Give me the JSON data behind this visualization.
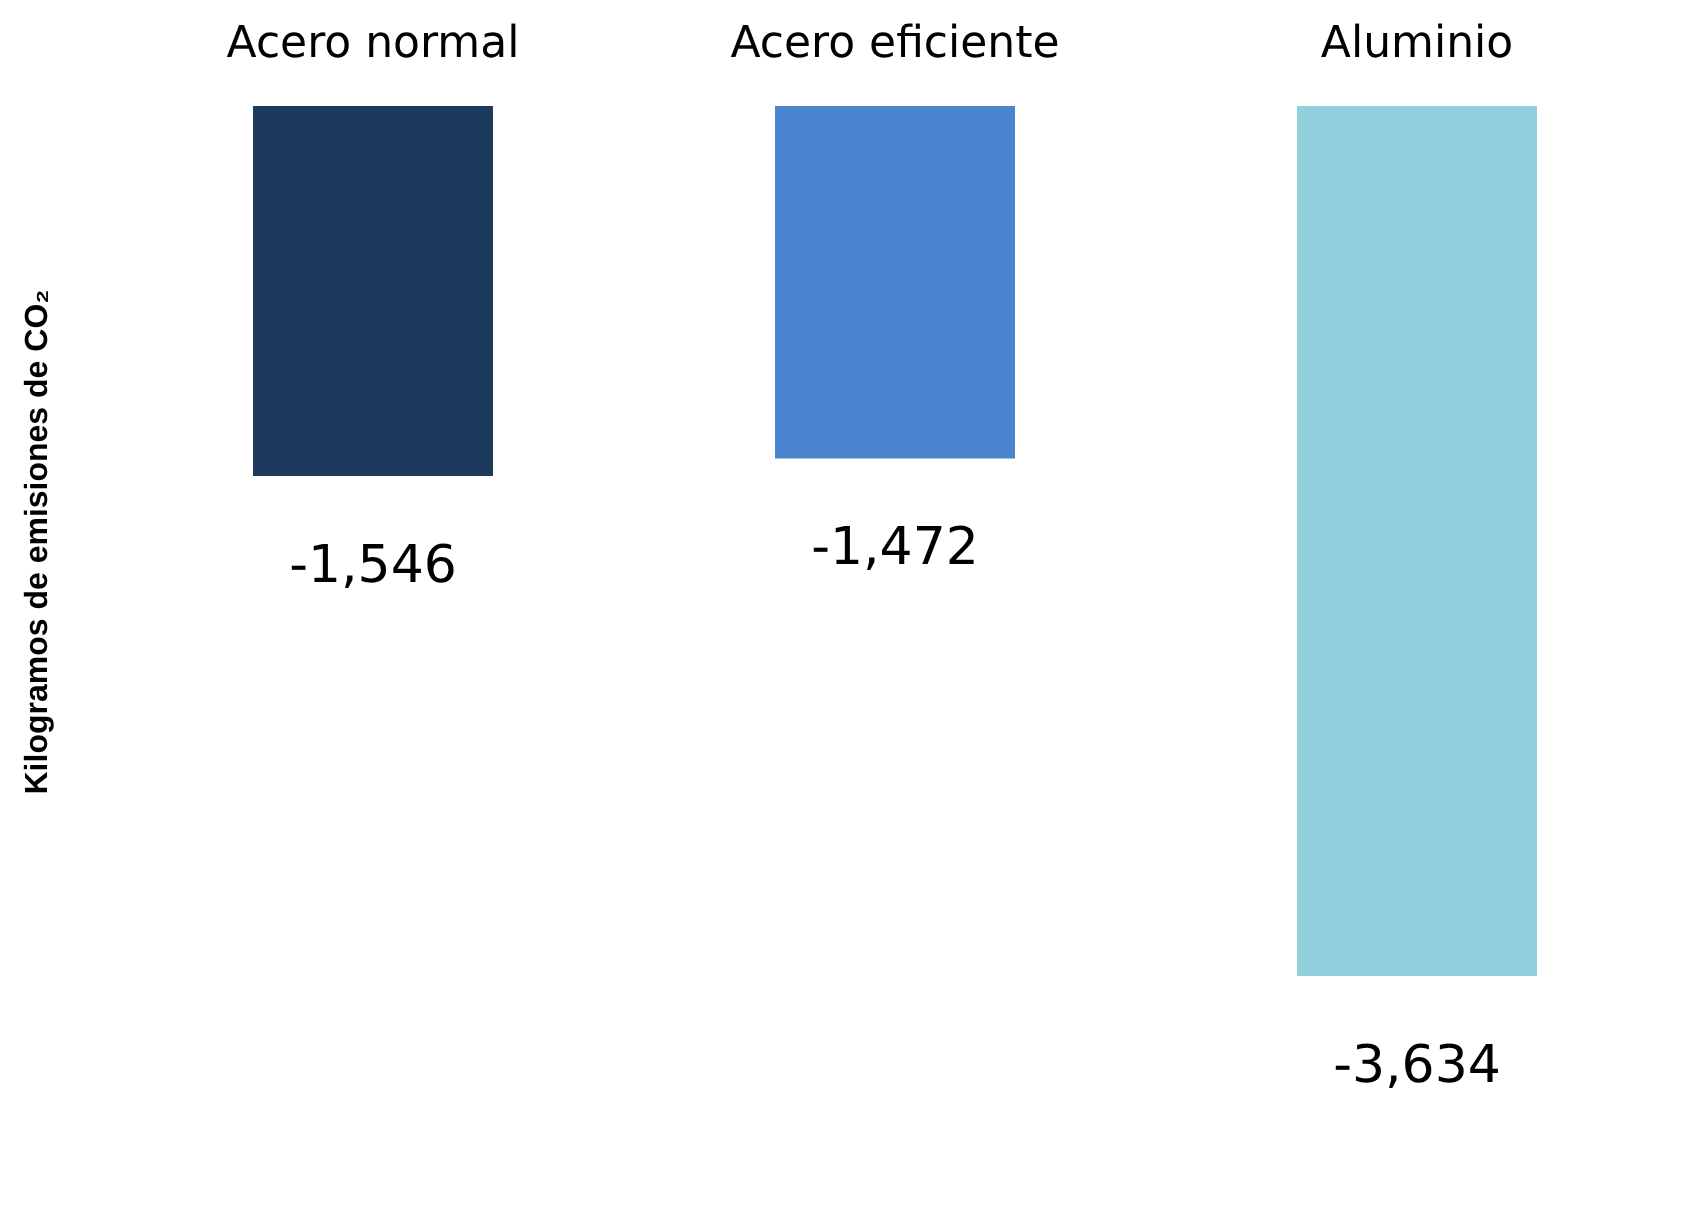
{
  "chart_data": {
    "type": "bar",
    "ylabel": "Kilogramos de emisiones de CO₂",
    "categories": [
      "Acero normal",
      "Acero eficiente",
      "Aluminio"
    ],
    "values": [
      -1546,
      -1472,
      -3634
    ],
    "colors": [
      "#1b3a5c",
      "#4a86d0",
      "#8fd0dc"
    ],
    "value_labels": [
      "-1,546",
      "-1,472",
      "-3,634"
    ],
    "grid": false,
    "tick_labels": "x"
  }
}
